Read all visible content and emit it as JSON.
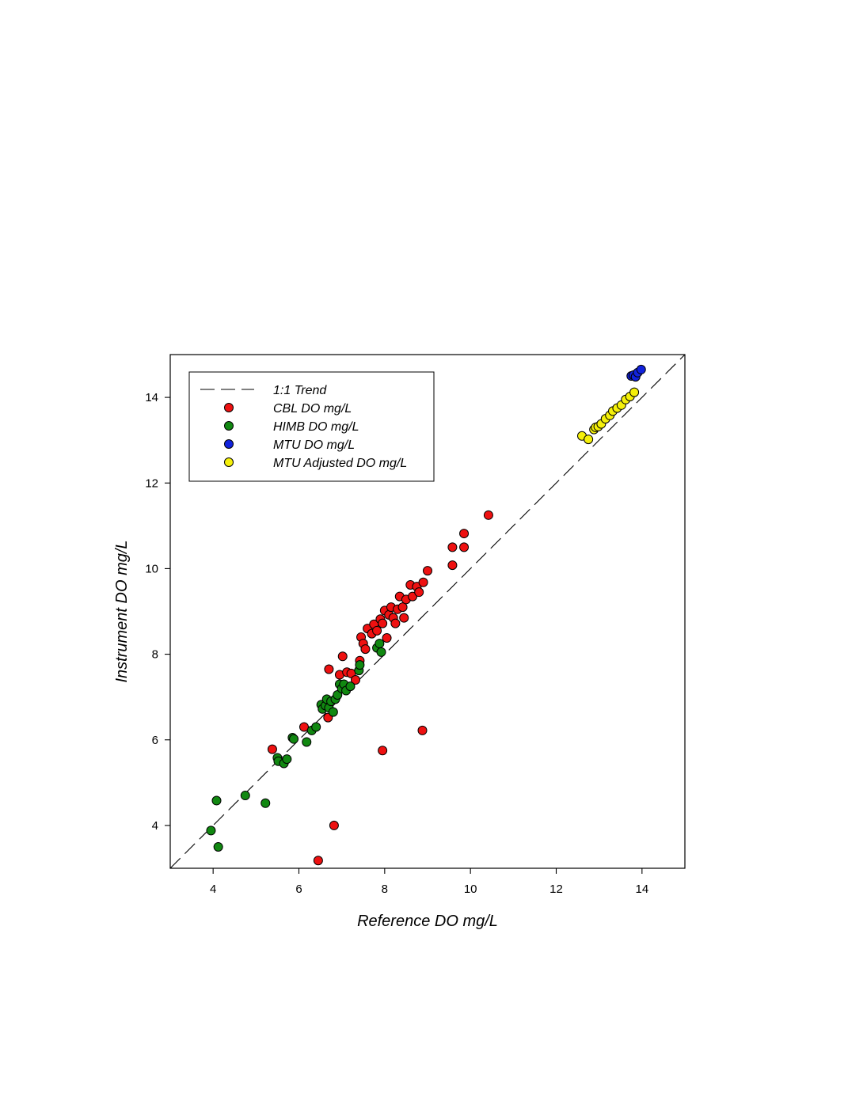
{
  "chart_data": {
    "type": "scatter",
    "xlabel": "Reference DO mg/L",
    "ylabel": "Instrument DO mg/L",
    "xlim": [
      3,
      15
    ],
    "ylim": [
      3,
      15
    ],
    "xticks": [
      4,
      6,
      8,
      10,
      12,
      14
    ],
    "yticks": [
      4,
      6,
      8,
      10,
      12,
      14
    ],
    "grid": false,
    "legend_position": "top-left",
    "reference_line": {
      "name": "1:1 Trend",
      "style": "dashed",
      "color": "#000000",
      "x": [
        3,
        15
      ],
      "y": [
        3,
        15
      ]
    },
    "series": [
      {
        "name": "CBL DO mg/L",
        "color": "#ee1111",
        "points": [
          [
            5.38,
            5.78
          ],
          [
            6.12,
            6.3
          ],
          [
            6.45,
            3.18
          ],
          [
            6.68,
            6.52
          ],
          [
            6.7,
            7.65
          ],
          [
            6.82,
            4.0
          ],
          [
            6.95,
            7.52
          ],
          [
            7.02,
            7.95
          ],
          [
            7.12,
            7.58
          ],
          [
            7.22,
            7.55
          ],
          [
            7.32,
            7.4
          ],
          [
            7.42,
            7.85
          ],
          [
            7.45,
            8.4
          ],
          [
            7.5,
            8.25
          ],
          [
            7.55,
            8.12
          ],
          [
            7.6,
            8.6
          ],
          [
            7.7,
            8.48
          ],
          [
            7.75,
            8.7
          ],
          [
            7.82,
            8.55
          ],
          [
            7.9,
            8.82
          ],
          [
            7.95,
            8.72
          ],
          [
            8.0,
            9.02
          ],
          [
            8.05,
            8.38
          ],
          [
            8.1,
            8.92
          ],
          [
            8.15,
            9.1
          ],
          [
            8.2,
            8.85
          ],
          [
            8.25,
            8.72
          ],
          [
            8.3,
            9.05
          ],
          [
            8.35,
            9.35
          ],
          [
            8.42,
            9.1
          ],
          [
            8.45,
            8.85
          ],
          [
            8.5,
            9.28
          ],
          [
            8.6,
            9.62
          ],
          [
            8.65,
            9.35
          ],
          [
            8.75,
            9.58
          ],
          [
            8.8,
            9.45
          ],
          [
            8.9,
            9.68
          ],
          [
            9.0,
            9.95
          ],
          [
            9.58,
            10.08
          ],
          [
            9.58,
            10.5
          ],
          [
            9.85,
            10.82
          ],
          [
            9.85,
            10.5
          ],
          [
            10.42,
            11.25
          ],
          [
            7.95,
            5.75
          ],
          [
            8.88,
            6.22
          ]
        ]
      },
      {
        "name": "HIMB DO mg/L",
        "color": "#118811",
        "points": [
          [
            3.95,
            3.88
          ],
          [
            4.08,
            4.58
          ],
          [
            4.12,
            3.5
          ],
          [
            4.75,
            4.7
          ],
          [
            5.22,
            4.52
          ],
          [
            5.5,
            5.58
          ],
          [
            5.52,
            5.5
          ],
          [
            5.65,
            5.45
          ],
          [
            5.72,
            5.55
          ],
          [
            5.85,
            6.05
          ],
          [
            5.88,
            6.02
          ],
          [
            6.18,
            5.95
          ],
          [
            6.3,
            6.22
          ],
          [
            6.4,
            6.3
          ],
          [
            6.52,
            6.82
          ],
          [
            6.55,
            6.72
          ],
          [
            6.62,
            6.8
          ],
          [
            6.65,
            6.95
          ],
          [
            6.7,
            6.75
          ],
          [
            6.75,
            6.9
          ],
          [
            6.8,
            6.65
          ],
          [
            6.85,
            6.95
          ],
          [
            6.9,
            7.05
          ],
          [
            6.95,
            7.3
          ],
          [
            7.0,
            7.2
          ],
          [
            7.05,
            7.3
          ],
          [
            7.1,
            7.15
          ],
          [
            7.2,
            7.25
          ],
          [
            7.4,
            7.62
          ],
          [
            7.42,
            7.75
          ],
          [
            7.82,
            8.15
          ],
          [
            7.88,
            8.25
          ],
          [
            7.92,
            8.05
          ]
        ]
      },
      {
        "name": "MTU DO mg/L",
        "color": "#1122dd",
        "points": [
          [
            13.75,
            14.5
          ],
          [
            13.8,
            14.52
          ],
          [
            13.85,
            14.48
          ],
          [
            13.9,
            14.58
          ],
          [
            13.98,
            14.65
          ]
        ]
      },
      {
        "name": "MTU Adjusted DO mg/L",
        "color": "#f5f00a",
        "points": [
          [
            12.6,
            13.1
          ],
          [
            12.75,
            13.02
          ],
          [
            12.88,
            13.25
          ],
          [
            12.92,
            13.3
          ],
          [
            12.98,
            13.32
          ],
          [
            13.05,
            13.38
          ],
          [
            13.15,
            13.5
          ],
          [
            13.25,
            13.58
          ],
          [
            13.32,
            13.68
          ],
          [
            13.42,
            13.75
          ],
          [
            13.52,
            13.82
          ],
          [
            13.62,
            13.95
          ],
          [
            13.72,
            14.02
          ],
          [
            13.82,
            14.12
          ]
        ]
      }
    ]
  }
}
